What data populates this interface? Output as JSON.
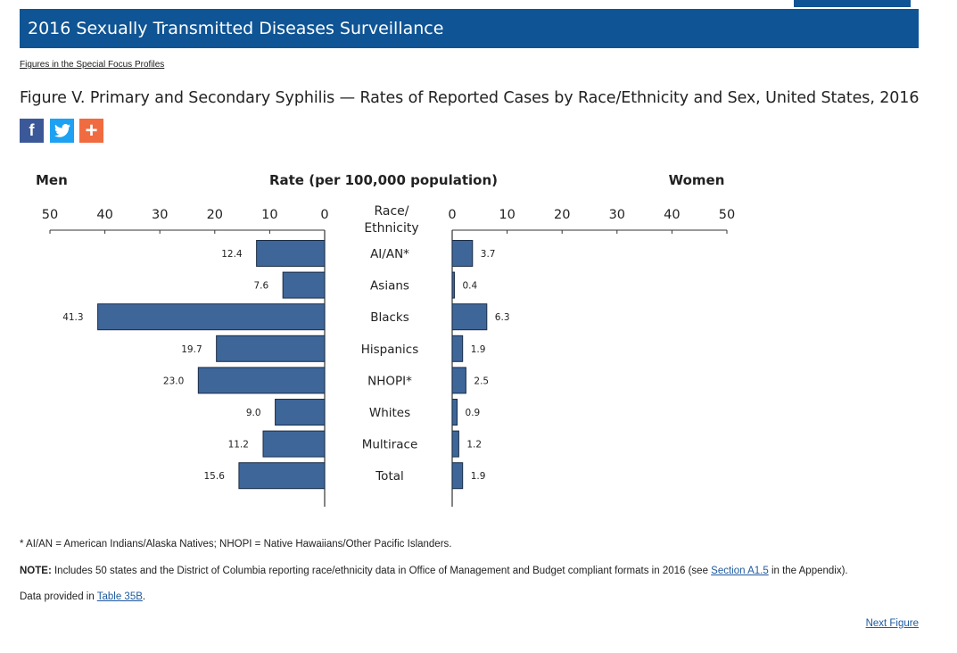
{
  "header": {
    "banner_title": "2016 Sexually Transmitted Diseases Surveillance",
    "breadcrumb": "Figures in the Special Focus Profiles",
    "figure_title": "Figure V. Primary and Secondary Syphilis — Rates of Reported Cases by Race/Ethnicity and Sex, United States, 2016"
  },
  "share": {
    "facebook": "f",
    "twitter": "t",
    "more": "+"
  },
  "chart_data": {
    "type": "bar",
    "orientation": "horizontal-back-to-back",
    "title": "Rate (per 100,000 population)",
    "left_label": "Men",
    "right_label": "Women",
    "center_header": [
      "Race/",
      "Ethnicity"
    ],
    "ticks": [
      50,
      40,
      30,
      20,
      10,
      0
    ],
    "xlim": [
      0,
      50
    ],
    "categories": [
      "AI/AN*",
      "Asians",
      "Blacks",
      "Hispanics",
      "NHOPI*",
      "Whites",
      "Multirace",
      "Total"
    ],
    "series": [
      {
        "name": "Men",
        "values": [
          12.4,
          7.6,
          41.3,
          19.7,
          23.0,
          9.0,
          11.2,
          15.6
        ],
        "labels": [
          "12.4",
          "7.6",
          "41.3",
          "19.7",
          "23.0",
          "9.0",
          "11.2",
          "15.6"
        ]
      },
      {
        "name": "Women",
        "values": [
          3.7,
          0.4,
          6.3,
          1.9,
          2.5,
          0.9,
          1.2,
          1.9
        ],
        "labels": [
          "3.7",
          "0.4",
          "6.3",
          "1.9",
          "2.5",
          "0.9",
          "1.2",
          "1.9"
        ]
      }
    ],
    "bar_color": "#3e6699"
  },
  "footer": {
    "footnote": "* AI/AN = American Indians/Alaska Natives; NHOPI = Native Hawaiians/Other Pacific Islanders.",
    "note_label": "NOTE:",
    "note_text_before": " Includes 50 states and the District of Columbia reporting race/ethnicity data in Office of Management and Budget compliant formats in 2016 (see ",
    "note_link": "Section A1.5",
    "note_text_after": " in the Appendix).",
    "data_text": "Data provided in ",
    "data_link": "Table 35B",
    "data_period": ".",
    "next_link": "Next Figure"
  }
}
